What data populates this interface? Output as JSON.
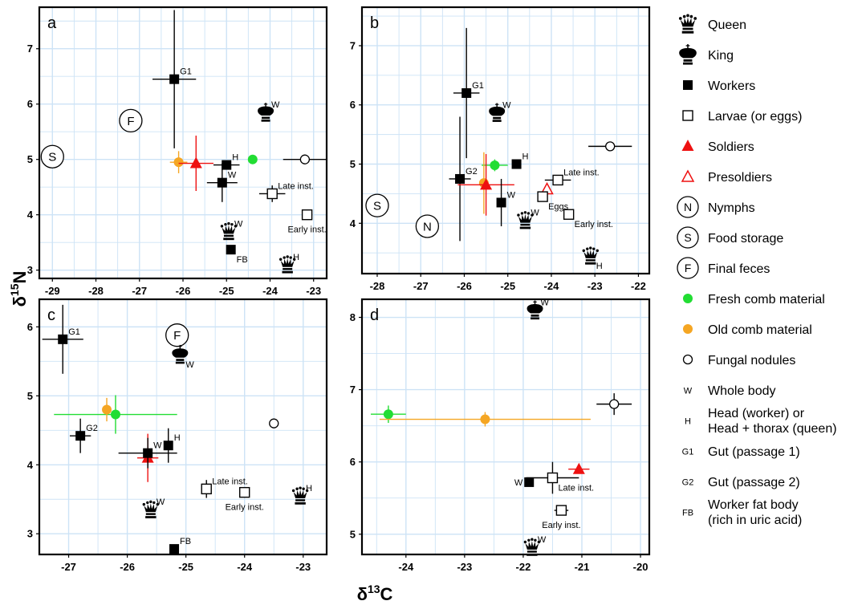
{
  "axis_titles": {
    "x": "δ¹³C",
    "y": "δ¹⁵N"
  },
  "legend_items": [
    {
      "symbol": "queen-icon",
      "label": "Queen"
    },
    {
      "symbol": "king-icon",
      "label": "King"
    },
    {
      "symbol": "square-filled",
      "label": "Workers"
    },
    {
      "symbol": "square-open",
      "label": "Larvae (or eggs)"
    },
    {
      "symbol": "triangle-filled",
      "label": "Soldiers"
    },
    {
      "symbol": "triangle-open",
      "label": "Presoldiers"
    },
    {
      "symbol": "circle-N",
      "label": "Nymphs"
    },
    {
      "symbol": "circle-S",
      "label": "Food storage"
    },
    {
      "symbol": "circle-F",
      "label": "Final feces"
    },
    {
      "symbol": "dot-green",
      "label": "Fresh comb material"
    },
    {
      "symbol": "dot-orange",
      "label": "Old comb material"
    },
    {
      "symbol": "circle-open",
      "label": "Fungal nodules"
    },
    {
      "symbol": "text-W",
      "abbr": "W",
      "label": "Whole body"
    },
    {
      "symbol": "text-H",
      "abbr": "H",
      "label": [
        "Head (worker) or",
        "Head + thorax (queen)"
      ]
    },
    {
      "symbol": "text-G1",
      "abbr": "G1",
      "label": "Gut (passage 1)"
    },
    {
      "symbol": "text-G2",
      "abbr": "G2",
      "label": "Gut (passage 2)"
    },
    {
      "symbol": "text-FB",
      "abbr": "FB",
      "label": [
        "Worker fat body",
        "(rich in uric acid)"
      ]
    }
  ],
  "colors": {
    "green": "#22dd33",
    "orange": "#f5a623",
    "red": "#ee1111",
    "black": "#000000",
    "grid": "#cde3f6"
  },
  "chart_data": [
    {
      "panel": "a",
      "type": "scatter",
      "xlim": [
        -29.3,
        -22.7
      ],
      "ylim": [
        2.85,
        7.75
      ],
      "xticks": [
        -29,
        -28,
        -27,
        -26,
        -25,
        -24,
        -23
      ],
      "yticks": [
        3,
        4,
        5,
        6,
        7
      ],
      "grid": true,
      "points": [
        {
          "kind": "circle-label",
          "text": "S",
          "x": -29.0,
          "y": 5.05
        },
        {
          "kind": "circle-label",
          "text": "F",
          "x": -27.2,
          "y": 5.7
        },
        {
          "kind": "square-filled",
          "x": -26.2,
          "y": 6.45,
          "xerr": 0.5,
          "yerr": 1.25,
          "label": "G1",
          "lpos": "ne"
        },
        {
          "kind": "dot-orange",
          "x": -26.1,
          "y": 4.95,
          "xerr": 0.2,
          "yerr": 0.2,
          "errcolor": "#f5a623"
        },
        {
          "kind": "triangle-filled",
          "x": -25.7,
          "y": 4.93,
          "xerr": 0.4,
          "yerr": 0.5,
          "errcolor": "#ee1111"
        },
        {
          "kind": "square-filled",
          "x": -25.0,
          "y": 4.9,
          "xerr": 0.3,
          "yerr": 0.08,
          "label": "H",
          "lpos": "ne"
        },
        {
          "kind": "dot-green",
          "x": -24.4,
          "y": 5.0
        },
        {
          "kind": "square-filled",
          "x": -25.1,
          "y": 4.58,
          "xerr": 0.35,
          "yerr": 0.35,
          "label": "W",
          "lpos": "ne"
        },
        {
          "kind": "king-icon",
          "x": -24.1,
          "y": 5.85,
          "label": "W",
          "lpos": "ne"
        },
        {
          "kind": "circle-open",
          "x": -23.2,
          "y": 5.0,
          "xerr": 0.5
        },
        {
          "kind": "square-open",
          "x": -23.95,
          "y": 4.38,
          "xerr": 0.3,
          "yerr": 0.15,
          "label": "Late inst.",
          "lpos": "ne"
        },
        {
          "kind": "square-open",
          "x": -23.15,
          "y": 4.0,
          "label": "Early inst.",
          "lpos": "s"
        },
        {
          "kind": "queen-icon",
          "x": -24.95,
          "y": 3.7,
          "label": "W",
          "lpos": "ne"
        },
        {
          "kind": "square-filled",
          "x": -24.9,
          "y": 3.37,
          "label": "FB",
          "lpos": "se"
        },
        {
          "kind": "queen-icon",
          "x": -23.6,
          "y": 3.1,
          "label": "H",
          "lpos": "ne"
        }
      ]
    },
    {
      "panel": "b",
      "type": "scatter",
      "xlim": [
        -28.35,
        -21.75
      ],
      "ylim": [
        3.15,
        7.65
      ],
      "xticks": [
        -28,
        -27,
        -26,
        -25,
        -24,
        -23,
        -22
      ],
      "yticks": [
        4,
        5,
        6,
        7
      ],
      "grid": true,
      "points": [
        {
          "kind": "circle-label",
          "text": "S",
          "x": -28.0,
          "y": 4.3
        },
        {
          "kind": "circle-label",
          "text": "N",
          "x": -26.85,
          "y": 3.95
        },
        {
          "kind": "square-filled",
          "x": -25.95,
          "y": 6.2,
          "xerr": 0.3,
          "yerr": 1.1,
          "label": "G1",
          "lpos": "ne"
        },
        {
          "kind": "king-icon",
          "x": -25.25,
          "y": 5.87,
          "label": "W",
          "lpos": "ne"
        },
        {
          "kind": "square-filled",
          "x": -24.8,
          "y": 5.0,
          "label": "H",
          "lpos": "ne"
        },
        {
          "kind": "dot-green",
          "x": -25.3,
          "y": 4.98,
          "xerr": 0.3,
          "yerr": 0.1,
          "errcolor": "#22dd33"
        },
        {
          "kind": "square-filled",
          "x": -26.1,
          "y": 4.75,
          "xerr": 0.25,
          "yerr": 1.05,
          "label": "G2",
          "lpos": "ne"
        },
        {
          "kind": "dot-orange",
          "x": -25.55,
          "y": 4.68,
          "yerr": 0.52,
          "errcolor": "#f5a623"
        },
        {
          "kind": "triangle-filled",
          "x": -25.5,
          "y": 4.65,
          "xerr": 0.65,
          "yerr": 0.52,
          "errcolor": "#ee1111"
        },
        {
          "kind": "square-filled",
          "x": -25.15,
          "y": 4.35,
          "yerr": 0.4,
          "label": "W",
          "lpos": "ne"
        },
        {
          "kind": "square-open",
          "x": -23.85,
          "y": 4.73,
          "xerr": 0.3,
          "label": "Late inst.",
          "lpos": "ne"
        },
        {
          "kind": "triangle-open",
          "x": -24.1,
          "y": 4.58
        },
        {
          "kind": "square-open",
          "x": -24.2,
          "y": 4.45,
          "label": "Eggs",
          "lpos": "se"
        },
        {
          "kind": "circle-open",
          "x": -22.65,
          "y": 5.3,
          "xerr": 0.5
        },
        {
          "kind": "queen-icon",
          "x": -24.6,
          "y": 4.05,
          "label": "W",
          "lpos": "ne"
        },
        {
          "kind": "square-open",
          "x": -23.6,
          "y": 4.15,
          "label": "Early inst.",
          "lpos": "se"
        },
        {
          "kind": "queen-icon",
          "x": -23.1,
          "y": 3.45,
          "label": "H",
          "lpos": "se"
        }
      ]
    },
    {
      "panel": "c",
      "type": "scatter",
      "xlim": [
        -27.5,
        -22.6
      ],
      "ylim": [
        2.7,
        6.4
      ],
      "xticks": [
        -27,
        -26,
        -25,
        -24,
        -23
      ],
      "yticks": [
        3,
        4,
        5,
        6
      ],
      "grid": true,
      "points": [
        {
          "kind": "square-filled",
          "x": -27.1,
          "y": 5.82,
          "xerr": 0.35,
          "yerr": 0.5,
          "label": "G1",
          "lpos": "ne"
        },
        {
          "kind": "circle-label",
          "text": "F",
          "x": -25.15,
          "y": 5.88
        },
        {
          "kind": "king-icon",
          "x": -25.1,
          "y": 5.6,
          "label": "W",
          "lpos": "se"
        },
        {
          "kind": "dot-green",
          "x": -26.2,
          "y": 4.73,
          "xerr": 1.05,
          "yerr": 0.28,
          "errcolor": "#22dd33"
        },
        {
          "kind": "dot-orange",
          "x": -26.35,
          "y": 4.8,
          "xerr": 0.05,
          "yerr": 0.17,
          "errcolor": "#f5a623"
        },
        {
          "kind": "square-filled",
          "x": -26.8,
          "y": 4.42,
          "xerr": 0.18,
          "yerr": 0.25,
          "label": "G2",
          "lpos": "ne"
        },
        {
          "kind": "circle-open",
          "x": -23.5,
          "y": 4.6
        },
        {
          "kind": "square-filled",
          "x": -25.3,
          "y": 4.28,
          "yerr": 0.25,
          "label": "H",
          "lpos": "ne"
        },
        {
          "kind": "triangle-filled",
          "x": -25.65,
          "y": 4.1,
          "xerr": 0.18,
          "yerr": 0.35,
          "errcolor": "#ee1111"
        },
        {
          "kind": "square-filled",
          "x": -25.65,
          "y": 4.17,
          "xerr": 0.5,
          "yerr": 0.22,
          "label": "W",
          "lpos": "ne"
        },
        {
          "kind": "square-open",
          "x": -24.65,
          "y": 3.65,
          "yerr": 0.13,
          "label": "Late inst.",
          "lpos": "ne"
        },
        {
          "kind": "square-open",
          "x": -24.0,
          "y": 3.6,
          "label": "Early inst.",
          "lpos": "s"
        },
        {
          "kind": "queen-icon",
          "x": -23.05,
          "y": 3.55,
          "label": "H",
          "lpos": "ne"
        },
        {
          "kind": "queen-icon",
          "x": -25.6,
          "y": 3.35,
          "label": "W",
          "lpos": "ne"
        },
        {
          "kind": "square-filled",
          "x": -25.2,
          "y": 2.78,
          "label": "FB",
          "lpos": "ne"
        }
      ]
    },
    {
      "panel": "d",
      "type": "scatter",
      "xlim": [
        -24.75,
        -19.85
      ],
      "ylim": [
        4.72,
        8.25
      ],
      "xticks": [
        -24,
        -23,
        -22,
        -21,
        -20
      ],
      "yticks": [
        5,
        6,
        7,
        8
      ],
      "grid": true,
      "points": [
        {
          "kind": "king-icon",
          "x": -21.8,
          "y": 8.1,
          "label": "W",
          "lpos": "ne"
        },
        {
          "kind": "dot-green",
          "x": -24.3,
          "y": 6.66,
          "xerr": 0.3,
          "yerr": 0.12,
          "errcolor": "#22dd33"
        },
        {
          "kind": "dot-orange",
          "x": -22.65,
          "y": 6.59,
          "xerr": 1.8,
          "yerr": 0.1,
          "errcolor": "#f5a623"
        },
        {
          "kind": "circle-open",
          "x": -20.45,
          "y": 6.8,
          "xerr": 0.3,
          "yerr": 0.15
        },
        {
          "kind": "triangle-filled",
          "x": -21.05,
          "y": 5.9,
          "xerr": 0.18,
          "errcolor": "#ee1111"
        },
        {
          "kind": "square-filled",
          "x": -21.9,
          "y": 5.72,
          "label": "W",
          "lpos": "w"
        },
        {
          "kind": "square-open",
          "x": -21.5,
          "y": 5.78,
          "xerr": 0.45,
          "yerr": 0.22,
          "label": "Late inst.",
          "lpos": "se"
        },
        {
          "kind": "square-open",
          "x": -21.35,
          "y": 5.33,
          "xerr": 0.12,
          "label": "Early inst.",
          "lpos": "s"
        },
        {
          "kind": "queen-icon",
          "x": -21.85,
          "y": 4.82,
          "label": "W",
          "lpos": "ne"
        }
      ]
    }
  ]
}
